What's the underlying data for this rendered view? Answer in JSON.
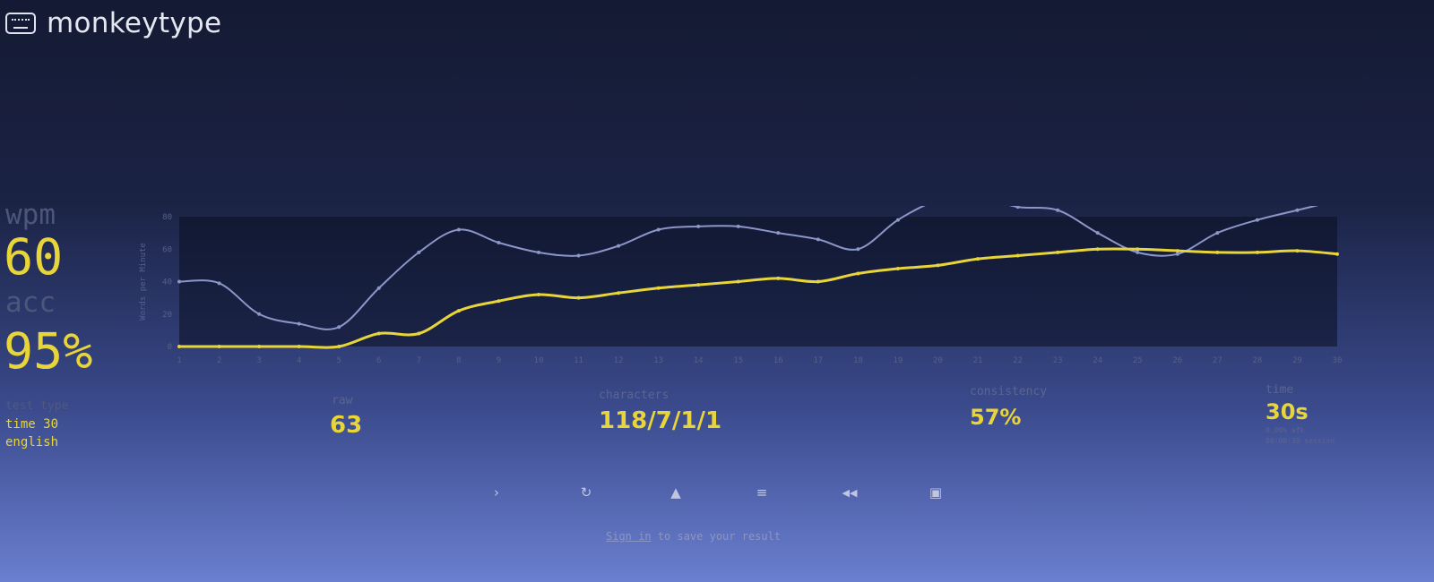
{
  "header": {
    "app_name": "monkeytype",
    "logo_icon": "keyboard-icon"
  },
  "result": {
    "wpm_label": "wpm",
    "wpm_value": "60",
    "acc_label": "acc",
    "acc_value": "95%",
    "test_type_label": "test type",
    "test_type_line1": "time 30",
    "test_type_line2": "english"
  },
  "stats": {
    "raw_label": "raw",
    "raw_value": "63",
    "characters_label": "characters",
    "characters_value": "118/7/1/1",
    "consistency_label": "consistency",
    "consistency_value": "57%",
    "time_label": "time",
    "time_value": "30s",
    "time_sub1": "0.00% afk",
    "time_sub2": "00:00:30 session"
  },
  "actions": [
    {
      "name": "next-test",
      "icon": "chevron-right-icon",
      "glyph": "›"
    },
    {
      "name": "restart-test",
      "icon": "restart-icon",
      "glyph": "↻"
    },
    {
      "name": "practice-words",
      "icon": "warning-icon",
      "glyph": "▲"
    },
    {
      "name": "toggle-words-history",
      "icon": "list-icon",
      "glyph": "≡"
    },
    {
      "name": "watch-replay",
      "icon": "rewind-icon",
      "glyph": "◀◀"
    },
    {
      "name": "save-screenshot",
      "icon": "image-icon",
      "glyph": "▣"
    }
  ],
  "footer": {
    "signin_link": "Sign in",
    "signin_rest": " to save your result"
  },
  "colors": {
    "accent": "#e8d53a",
    "raw_line": "#8c97c9",
    "sub_text": "#5b6592"
  },
  "chart_data": {
    "type": "line",
    "x": [
      1,
      2,
      3,
      4,
      5,
      6,
      7,
      8,
      9,
      10,
      11,
      12,
      13,
      14,
      15,
      16,
      17,
      18,
      19,
      20,
      21,
      22,
      23,
      24,
      25,
      26,
      27,
      28,
      29,
      30
    ],
    "ylabel": "Words per Minute",
    "ylim": [
      0,
      80
    ],
    "yticks": [
      0,
      20,
      40,
      60,
      80
    ],
    "series": [
      {
        "name": "raw",
        "color": "#8c97c9",
        "values": [
          40,
          39,
          20,
          14,
          12,
          36,
          58,
          72,
          64,
          58,
          56,
          62,
          72,
          74,
          74,
          70,
          66,
          60,
          78,
          90,
          92,
          86,
          84,
          70,
          58,
          57,
          70,
          78,
          84,
          90
        ]
      },
      {
        "name": "wpm",
        "color": "#e8d53a",
        "values": [
          0,
          0,
          0,
          0,
          0,
          8,
          8,
          22,
          28,
          32,
          30,
          33,
          36,
          38,
          40,
          42,
          40,
          45,
          48,
          50,
          54,
          56,
          58,
          60,
          60,
          59,
          58,
          58,
          59,
          57
        ]
      }
    ]
  }
}
